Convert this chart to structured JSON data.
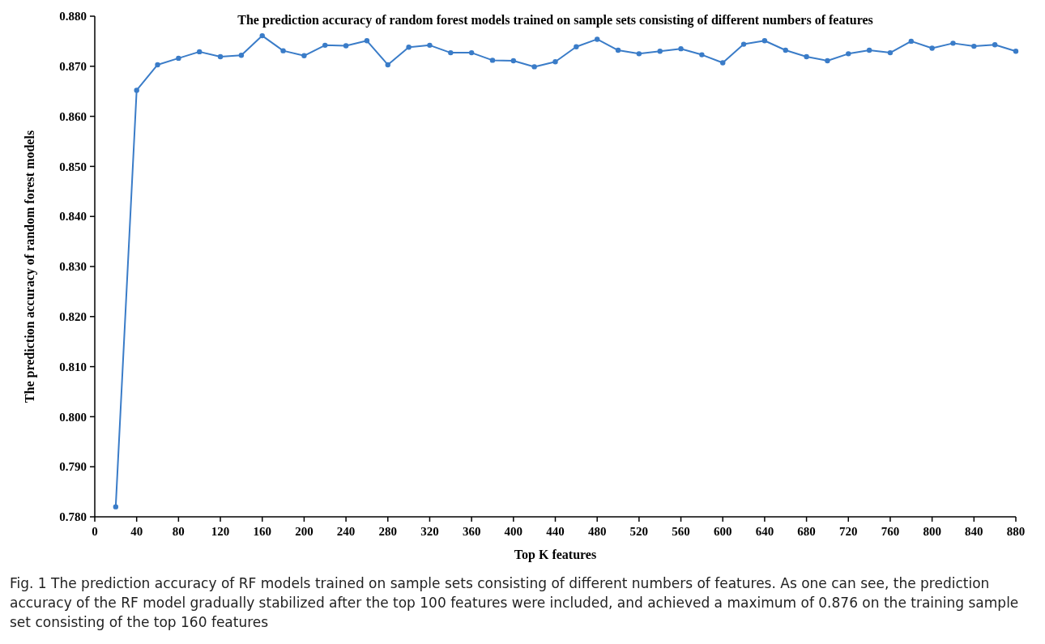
{
  "chart_data": {
    "type": "line",
    "title": "The prediction accuracy of random forest models trained on sample sets consisting of different numbers of features",
    "xlabel": "Top K features",
    "ylabel": "The prediction accuracy of random forest models",
    "annotations": [
      "Fig. 1 The prediction accuracy of RF models trained on sample sets consisting of different numbers of features. As one can see, the prediction accuracy of the RF model gradually stabilized after the top 100 features were included, and achieved a maximum of 0.876 on the training sample set consisting of the top 160 features"
    ],
    "x": [
      20,
      40,
      60,
      80,
      100,
      120,
      140,
      160,
      180,
      200,
      220,
      240,
      260,
      280,
      300,
      320,
      340,
      360,
      380,
      400,
      420,
      440,
      460,
      480,
      500,
      520,
      540,
      560,
      580,
      600,
      620,
      640,
      660,
      680,
      700,
      720,
      740,
      760,
      780,
      800,
      820,
      840,
      860,
      880
    ],
    "series": [
      {
        "color": "#3a7cc8",
        "values": [
          0.782,
          0.8652,
          0.8703,
          0.8716,
          0.8729,
          0.8719,
          0.8722,
          0.8761,
          0.8731,
          0.8721,
          0.8742,
          0.8741,
          0.8751,
          0.8703,
          0.8738,
          0.8742,
          0.8727,
          0.8727,
          0.8712,
          0.8711,
          0.8699,
          0.8709,
          0.8739,
          0.8754,
          0.8732,
          0.8725,
          0.873,
          0.8735,
          0.8723,
          0.8707,
          0.8744,
          0.8751,
          0.8732,
          0.8719,
          0.8711,
          0.8725,
          0.8732,
          0.8727,
          0.875,
          0.8736,
          0.8746,
          0.874,
          0.8743,
          0.873
        ]
      }
    ],
    "xlim": [
      0,
      880
    ],
    "xticks": [
      0,
      40,
      80,
      120,
      160,
      200,
      240,
      280,
      320,
      360,
      400,
      440,
      480,
      520,
      560,
      600,
      640,
      680,
      720,
      760,
      800,
      840,
      880
    ],
    "ylim": [
      0.78,
      0.88
    ],
    "yticks": [
      {
        "value": 0.78,
        "label": "0.780"
      },
      {
        "value": 0.79,
        "label": "0.790"
      },
      {
        "value": 0.8,
        "label": "0.800"
      },
      {
        "value": 0.81,
        "label": "0.810"
      },
      {
        "value": 0.82,
        "label": "0.820"
      },
      {
        "value": 0.83,
        "label": "0.830"
      },
      {
        "value": 0.84,
        "label": "0.840"
      },
      {
        "value": 0.85,
        "label": "0.850"
      },
      {
        "value": 0.86,
        "label": "0.860"
      },
      {
        "value": 0.87,
        "label": "0.870"
      },
      {
        "value": 0.88,
        "label": "0.880"
      }
    ],
    "grid": false,
    "marker": "circle",
    "line_style": "solid"
  }
}
